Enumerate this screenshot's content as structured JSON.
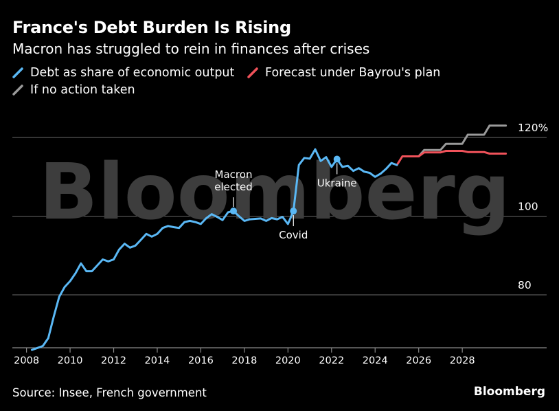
{
  "title": "France's Debt Burden Is Rising",
  "subtitle": "Macron has struggled to rein in finances after crises",
  "source": "Source: Insee, French government",
  "brand": "Bloomberg",
  "watermark": "Bloomberg",
  "chart_data": {
    "type": "line",
    "xlim": [
      2008,
      2030.4
    ],
    "ylim": [
      65,
      126
    ],
    "x_ticks": [
      "2008",
      "2010",
      "2012",
      "2014",
      "2016",
      "2018",
      "2020",
      "2022",
      "2024",
      "2026",
      "2028"
    ],
    "y_ticks": [
      {
        "value": 80,
        "label": "80"
      },
      {
        "value": 100,
        "label": "100"
      },
      {
        "value": 120,
        "label": "120%"
      }
    ],
    "grid": true,
    "legend_placement": "top-left",
    "series": [
      {
        "name": "Debt as share of economic output",
        "color": "#5ab8f5",
        "points": [
          [
            2008.25,
            66.0
          ],
          [
            2008.5,
            66.5
          ],
          [
            2008.75,
            67.0
          ],
          [
            2009.0,
            69.0
          ],
          [
            2009.25,
            74.5
          ],
          [
            2009.5,
            79.5
          ],
          [
            2009.75,
            82.0
          ],
          [
            2010.0,
            83.5
          ],
          [
            2010.25,
            85.5
          ],
          [
            2010.5,
            88.0
          ],
          [
            2010.75,
            86.0
          ],
          [
            2011.0,
            86.0
          ],
          [
            2011.25,
            87.5
          ],
          [
            2011.5,
            89.0
          ],
          [
            2011.75,
            88.5
          ],
          [
            2012.0,
            89.0
          ],
          [
            2012.25,
            91.5
          ],
          [
            2012.5,
            93.0
          ],
          [
            2012.75,
            92.0
          ],
          [
            2013.0,
            92.5
          ],
          [
            2013.25,
            94.0
          ],
          [
            2013.5,
            95.5
          ],
          [
            2013.75,
            94.8
          ],
          [
            2014.0,
            95.5
          ],
          [
            2014.25,
            97.0
          ],
          [
            2014.5,
            97.5
          ],
          [
            2014.75,
            97.2
          ],
          [
            2015.0,
            97.0
          ],
          [
            2015.25,
            98.5
          ],
          [
            2015.5,
            98.8
          ],
          [
            2015.75,
            98.5
          ],
          [
            2016.0,
            98.0
          ],
          [
            2016.25,
            99.5
          ],
          [
            2016.5,
            100.5
          ],
          [
            2016.75,
            99.8
          ],
          [
            2017.0,
            99.0
          ],
          [
            2017.25,
            101.0
          ],
          [
            2017.5,
            101.3
          ],
          [
            2017.75,
            100.0
          ],
          [
            2018.0,
            98.8
          ],
          [
            2018.25,
            99.2
          ],
          [
            2018.5,
            99.3
          ],
          [
            2018.75,
            99.4
          ],
          [
            2019.0,
            98.8
          ],
          [
            2019.25,
            99.5
          ],
          [
            2019.5,
            99.2
          ],
          [
            2019.75,
            99.8
          ],
          [
            2020.0,
            98.0
          ],
          [
            2020.25,
            101.3
          ],
          [
            2020.5,
            113.0
          ],
          [
            2020.75,
            114.8
          ],
          [
            2021.0,
            114.6
          ],
          [
            2021.25,
            117.0
          ],
          [
            2021.5,
            114.0
          ],
          [
            2021.75,
            115.0
          ],
          [
            2022.0,
            112.5
          ],
          [
            2022.25,
            114.5
          ],
          [
            2022.5,
            112.5
          ],
          [
            2022.75,
            112.8
          ],
          [
            2023.0,
            111.5
          ],
          [
            2023.25,
            112.2
          ],
          [
            2023.5,
            111.3
          ],
          [
            2023.75,
            111.0
          ],
          [
            2024.0,
            110.0
          ],
          [
            2024.25,
            110.8
          ],
          [
            2024.5,
            112.0
          ],
          [
            2024.75,
            113.5
          ],
          [
            2025.0,
            113.0
          ]
        ]
      },
      {
        "name": "Forecast under Bayrou's plan",
        "color": "#f0525a",
        "points": [
          [
            2025.0,
            113.0
          ],
          [
            2025.25,
            115.2
          ],
          [
            2026.0,
            115.2
          ],
          [
            2026.25,
            116.2
          ],
          [
            2027.0,
            116.2
          ],
          [
            2027.25,
            116.6
          ],
          [
            2028.0,
            116.6
          ],
          [
            2028.25,
            116.3
          ],
          [
            2029.0,
            116.3
          ],
          [
            2029.25,
            115.9
          ],
          [
            2030.0,
            115.9
          ]
        ]
      },
      {
        "name": "If no action taken",
        "color": "#9a9a9a",
        "points": [
          [
            2025.5,
            115.2
          ],
          [
            2026.0,
            115.2
          ],
          [
            2026.25,
            116.8
          ],
          [
            2027.0,
            116.8
          ],
          [
            2027.25,
            118.4
          ],
          [
            2028.0,
            118.4
          ],
          [
            2028.25,
            120.7
          ],
          [
            2029.0,
            120.7
          ],
          [
            2029.25,
            123.0
          ],
          [
            2030.0,
            123.0
          ]
        ]
      }
    ],
    "annotations": [
      {
        "label": [
          "Macron",
          "elected"
        ],
        "x": 2017.5,
        "y": 101.3,
        "position": "above"
      },
      {
        "label": [
          "Covid"
        ],
        "x": 2020.25,
        "y": 101.3,
        "position": "below"
      },
      {
        "label": [
          "Ukraine"
        ],
        "x": 2022.25,
        "y": 114.5,
        "position": "below"
      }
    ]
  }
}
